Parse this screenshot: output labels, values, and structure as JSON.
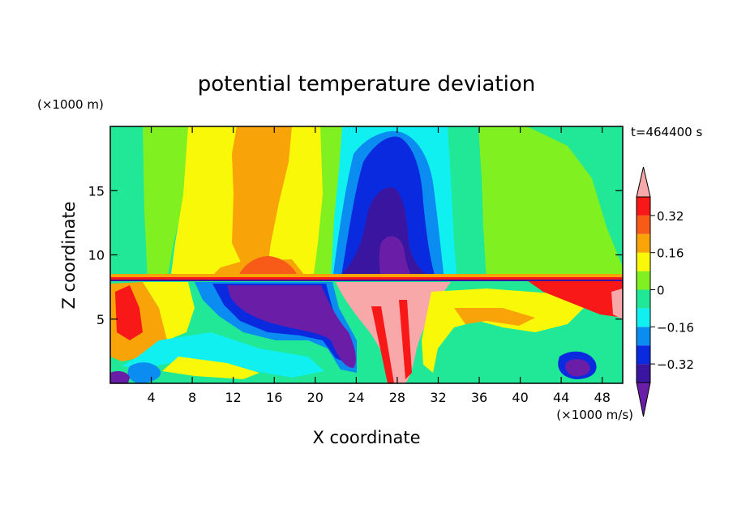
{
  "chart_data": {
    "type": "heatmap",
    "title": "potential temperature deviation",
    "xlabel": "X coordinate",
    "ylabel": "Z coordinate",
    "x_unit": "(×1000 m/s)",
    "y_unit": "(×1000 m)",
    "time_label": "t=464400 s",
    "xlim": [
      0,
      50
    ],
    "ylim": [
      0,
      20
    ],
    "x_ticks": [
      4,
      8,
      12,
      16,
      20,
      24,
      28,
      32,
      36,
      40,
      44,
      48
    ],
    "y_ticks": [
      5,
      10,
      15
    ],
    "colorbar": {
      "levels": [
        -0.4,
        -0.32,
        -0.24,
        -0.16,
        -0.08,
        0,
        0.08,
        0.16,
        0.24,
        0.32,
        0.4
      ],
      "colors": [
        "#6a1ea8",
        "#3a16a0",
        "#0a2ae0",
        "#0a8cf0",
        "#10f0f0",
        "#20e896",
        "#80f020",
        "#f8f808",
        "#f8a408",
        "#f85a18",
        "#f81818",
        "#f8a8a8"
      ],
      "tick_labels": [
        "0.32",
        "0.16",
        "0",
        "−0.16",
        "−0.32"
      ],
      "tick_values": [
        0.32,
        0.16,
        0,
        -0.16,
        -0.32
      ]
    }
  }
}
